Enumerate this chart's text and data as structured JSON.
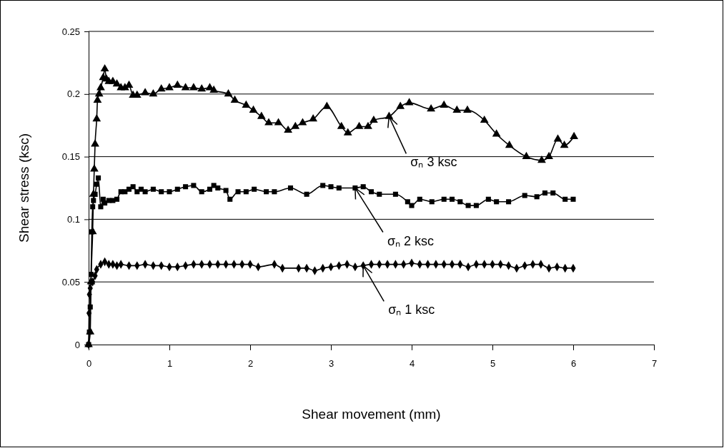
{
  "chart_data": {
    "type": "line",
    "xlabel": "Shear movement (mm)",
    "ylabel": "Shear stress (ksc)",
    "xlim": [
      0,
      7
    ],
    "xticks": [
      0,
      1,
      2,
      3,
      4,
      5,
      6,
      7
    ],
    "ylim": [
      0,
      0.25
    ],
    "yticks": [
      0,
      0.05,
      0.1,
      0.15,
      0.2,
      0.25
    ],
    "grid": "y",
    "line_style": "solid",
    "series": [
      {
        "color": "#000000",
        "marker": "triangle",
        "x": [
          0,
          0.02,
          0.03,
          0.05,
          0.06,
          0.07,
          0.08,
          0.1,
          0.11,
          0.13,
          0.15,
          0.18,
          0.2,
          0.22,
          0.25,
          0.3,
          0.35,
          0.4,
          0.45,
          0.5,
          0.55,
          0.6,
          0.7,
          0.8,
          0.9,
          1.0,
          1.1,
          1.2,
          1.3,
          1.4,
          1.5,
          1.55,
          1.73,
          1.81,
          1.95,
          2.04,
          2.14,
          2.23,
          2.35,
          2.47,
          2.56,
          2.65,
          2.78,
          2.95,
          3.13,
          3.21,
          3.35,
          3.46,
          3.53,
          3.72,
          3.86,
          3.97,
          4.24,
          4.4,
          4.56,
          4.69,
          4.9,
          5.05,
          5.21,
          5.42,
          5.61,
          5.7,
          5.81,
          5.89,
          6.01
        ],
        "values": [
          0,
          0.01,
          0.05,
          0.09,
          0.12,
          0.14,
          0.16,
          0.18,
          0.195,
          0.2,
          0.205,
          0.213,
          0.22,
          0.212,
          0.21,
          0.21,
          0.208,
          0.205,
          0.205,
          0.207,
          0.199,
          0.199,
          0.201,
          0.2,
          0.204,
          0.205,
          0.207,
          0.205,
          0.205,
          0.204,
          0.205,
          0.203,
          0.2,
          0.195,
          0.191,
          0.187,
          0.182,
          0.177,
          0.177,
          0.171,
          0.174,
          0.177,
          0.18,
          0.19,
          0.174,
          0.169,
          0.174,
          0.174,
          0.179,
          0.182,
          0.19,
          0.193,
          0.188,
          0.191,
          0.187,
          0.187,
          0.179,
          0.168,
          0.159,
          0.15,
          0.147,
          0.15,
          0.164,
          0.159,
          0.166
        ]
      },
      {
        "color": "#000000",
        "marker": "square",
        "x": [
          0,
          0.01,
          0.02,
          0.03,
          0.04,
          0.05,
          0.06,
          0.08,
          0.1,
          0.12,
          0.15,
          0.18,
          0.2,
          0.25,
          0.3,
          0.35,
          0.4,
          0.45,
          0.5,
          0.55,
          0.6,
          0.65,
          0.7,
          0.8,
          0.9,
          1.0,
          1.1,
          1.2,
          1.3,
          1.4,
          1.5,
          1.55,
          1.6,
          1.7,
          1.75,
          1.85,
          1.95,
          2.05,
          2.2,
          2.3,
          2.5,
          2.7,
          2.9,
          3.0,
          3.1,
          3.3,
          3.4,
          3.5,
          3.6,
          3.8,
          3.95,
          4.0,
          4.1,
          4.25,
          4.4,
          4.5,
          4.6,
          4.7,
          4.8,
          4.95,
          5.05,
          5.2,
          5.4,
          5.55,
          5.65,
          5.75,
          5.9,
          6.0
        ],
        "values": [
          0,
          0.01,
          0.03,
          0.056,
          0.09,
          0.11,
          0.115,
          0.12,
          0.128,
          0.133,
          0.11,
          0.116,
          0.113,
          0.115,
          0.115,
          0.116,
          0.122,
          0.122,
          0.124,
          0.126,
          0.122,
          0.124,
          0.122,
          0.124,
          0.122,
          0.122,
          0.124,
          0.126,
          0.127,
          0.122,
          0.124,
          0.127,
          0.125,
          0.123,
          0.116,
          0.122,
          0.122,
          0.124,
          0.122,
          0.122,
          0.125,
          0.12,
          0.127,
          0.126,
          0.125,
          0.125,
          0.126,
          0.122,
          0.12,
          0.12,
          0.114,
          0.111,
          0.116,
          0.114,
          0.116,
          0.116,
          0.114,
          0.111,
          0.111,
          0.116,
          0.114,
          0.114,
          0.119,
          0.118,
          0.121,
          0.121,
          0.116,
          0.116
        ]
      },
      {
        "color": "#000000",
        "marker": "diamond",
        "x": [
          0,
          0.005,
          0.01,
          0.02,
          0.05,
          0.08,
          0.1,
          0.15,
          0.2,
          0.25,
          0.3,
          0.35,
          0.4,
          0.5,
          0.6,
          0.7,
          0.8,
          0.9,
          1.0,
          1.1,
          1.2,
          1.3,
          1.4,
          1.5,
          1.6,
          1.7,
          1.8,
          1.9,
          2.0,
          2.1,
          2.3,
          2.4,
          2.6,
          2.7,
          2.8,
          2.9,
          3.0,
          3.1,
          3.2,
          3.3,
          3.4,
          3.5,
          3.6,
          3.7,
          3.8,
          3.9,
          4.0,
          4.1,
          4.2,
          4.3,
          4.4,
          4.5,
          4.6,
          4.7,
          4.8,
          4.9,
          5.0,
          5.1,
          5.2,
          5.3,
          5.4,
          5.5,
          5.6,
          5.7,
          5.8,
          5.9,
          6.0
        ],
        "values": [
          0,
          0.025,
          0.04,
          0.045,
          0.05,
          0.055,
          0.06,
          0.064,
          0.066,
          0.064,
          0.064,
          0.063,
          0.064,
          0.063,
          0.063,
          0.064,
          0.063,
          0.063,
          0.062,
          0.062,
          0.063,
          0.064,
          0.064,
          0.064,
          0.064,
          0.064,
          0.064,
          0.064,
          0.064,
          0.062,
          0.064,
          0.061,
          0.061,
          0.061,
          0.059,
          0.061,
          0.062,
          0.063,
          0.064,
          0.062,
          0.063,
          0.064,
          0.064,
          0.064,
          0.064,
          0.064,
          0.065,
          0.064,
          0.064,
          0.064,
          0.064,
          0.064,
          0.064,
          0.062,
          0.064,
          0.064,
          0.064,
          0.064,
          0.063,
          0.061,
          0.063,
          0.064,
          0.064,
          0.061,
          0.062,
          0.061,
          0.061
        ]
      }
    ],
    "annotations": [
      {
        "text": "σₙ 3 ksc",
        "x": 3.72,
        "y": 0.182
      },
      {
        "text": "σₙ 2 ksc",
        "x": 3.3,
        "y": 0.125
      },
      {
        "text": "σₙ 1 ksc",
        "x": 3.4,
        "y": 0.063
      }
    ]
  }
}
